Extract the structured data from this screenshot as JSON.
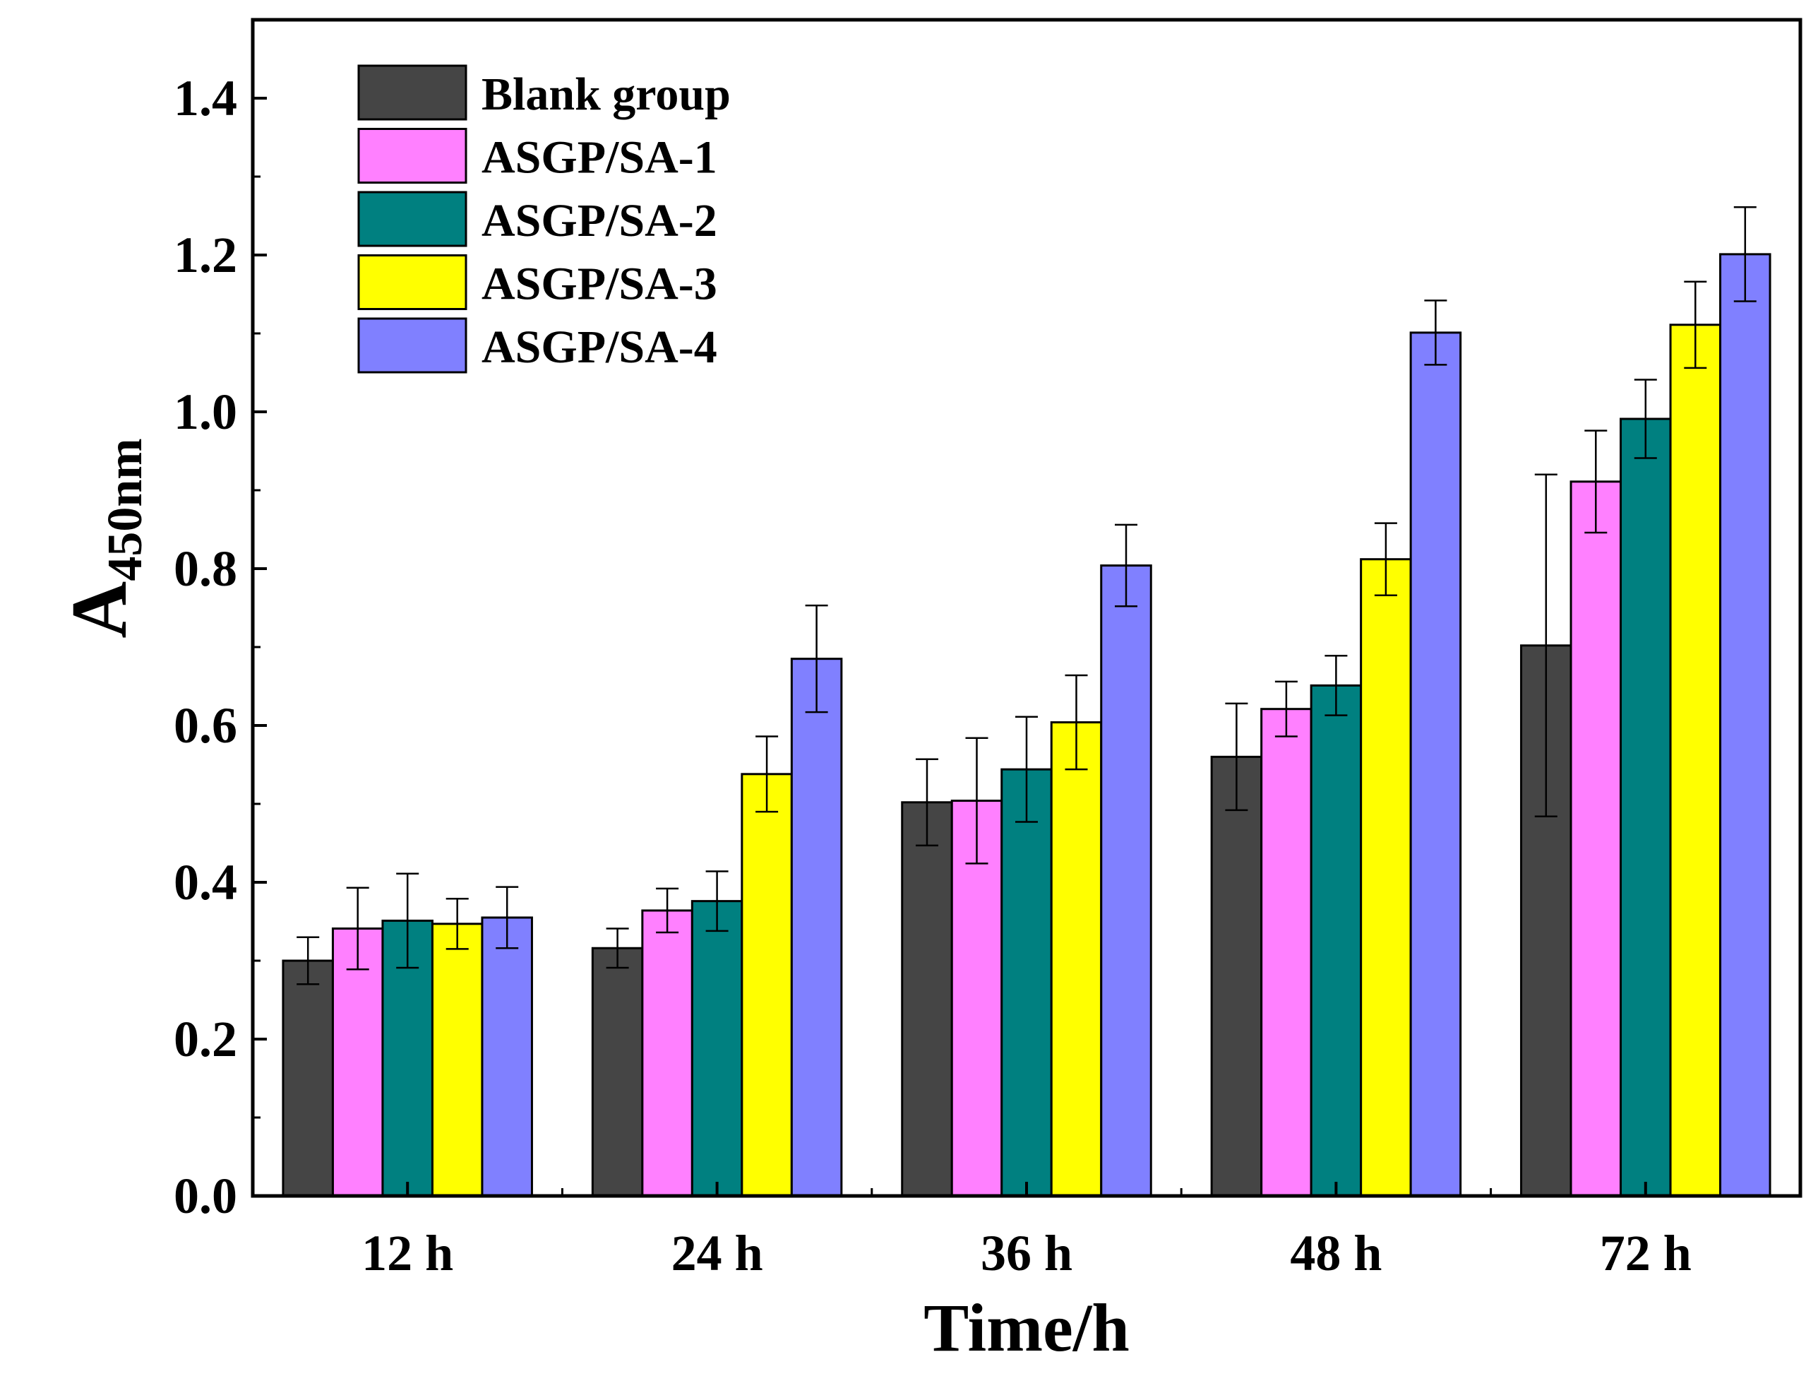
{
  "chart_data": {
    "type": "bar",
    "title": "",
    "xlabel": "Time/h",
    "ylabel_main": "A",
    "ylabel_sub": "450nm",
    "categories": [
      "12 h",
      "24 h",
      "36 h",
      "48 h",
      "72 h"
    ],
    "ylim": [
      0.0,
      1.5
    ],
    "yticks": [
      0.0,
      0.2,
      0.4,
      0.6,
      0.8,
      1.0,
      1.2,
      1.4
    ],
    "ytick_labels": [
      "0.0",
      "0.2",
      "0.4",
      "0.6",
      "0.8",
      "1.0",
      "1.2",
      "1.4"
    ],
    "legend_position": "top-left",
    "grid": false,
    "series": [
      {
        "name": "Blank group",
        "color": "#454545",
        "values": [
          0.3,
          0.316,
          0.502,
          0.56,
          0.702
        ],
        "errors": [
          0.03,
          0.025,
          0.055,
          0.068,
          0.218
        ]
      },
      {
        "name": "ASGP/SA-1",
        "color": "#ff80ff",
        "values": [
          0.341,
          0.364,
          0.504,
          0.621,
          0.911
        ],
        "errors": [
          0.052,
          0.028,
          0.08,
          0.035,
          0.065
        ]
      },
      {
        "name": "ASGP/SA-2",
        "color": "#008080",
        "values": [
          0.351,
          0.376,
          0.544,
          0.651,
          0.991
        ],
        "errors": [
          0.06,
          0.038,
          0.067,
          0.038,
          0.05
        ]
      },
      {
        "name": "ASGP/SA-3",
        "color": "#ffff00",
        "values": [
          0.347,
          0.538,
          0.604,
          0.812,
          1.111
        ],
        "errors": [
          0.032,
          0.048,
          0.06,
          0.046,
          0.055
        ]
      },
      {
        "name": "ASGP/SA-4",
        "color": "#8080ff",
        "values": [
          0.355,
          0.685,
          0.804,
          1.101,
          1.201
        ],
        "errors": [
          0.039,
          0.068,
          0.052,
          0.041,
          0.06
        ]
      }
    ]
  }
}
